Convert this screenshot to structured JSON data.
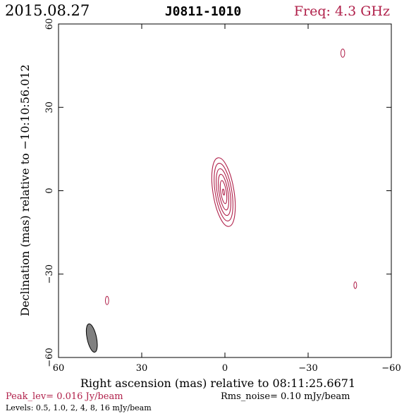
{
  "header": {
    "date": "2015.08.27",
    "source": "J0811-1010",
    "freq": "Freq: 4.3 GHz"
  },
  "chart_data": {
    "type": "contour",
    "xlabel": "Right ascension (mas) relative to 08:11:25.6671",
    "ylabel": "Declination (mas) relative to −10:10:56.012",
    "xlim": [
      60,
      -60
    ],
    "ylim": [
      -60,
      60
    ],
    "xticks": [
      60,
      30,
      0,
      -30,
      -60
    ],
    "yticks": [
      -60,
      -30,
      0,
      30,
      60
    ],
    "xtick_labels": [
      "60",
      "30",
      "0",
      "−30",
      "−60"
    ],
    "ytick_labels": [
      "−60",
      "−30",
      "0",
      "30",
      "60"
    ],
    "contour_levels_mJy": [
      0.5,
      1.0,
      2,
      4,
      8,
      16
    ],
    "main_component": {
      "x": 0.5,
      "y": -0.5,
      "semi_axes_mas": [
        [
          3.8,
          12.5
        ],
        [
          3.0,
          10.5
        ],
        [
          2.3,
          8.5
        ],
        [
          1.6,
          6.5
        ],
        [
          1.0,
          4.2
        ],
        [
          0.3,
          1.1
        ]
      ],
      "pa_deg": -9
    },
    "small_contours": [
      {
        "x": -42.5,
        "y": 49.5,
        "semi_axes_mas": [
          0.7,
          1.5
        ],
        "pa_deg": 0
      },
      {
        "x": 42.5,
        "y": -39.5,
        "semi_axes_mas": [
          0.6,
          1.5
        ],
        "pa_deg": 0
      },
      {
        "x": -47,
        "y": -34,
        "semi_axes_mas": [
          0.5,
          1.2
        ],
        "pa_deg": 0
      }
    ],
    "beam": {
      "x": 48,
      "y": -53,
      "semi_axes_mas": [
        1.7,
        5.2
      ],
      "pa_deg": -12
    },
    "peak_level": "Peak_lev= 0.016 Jy/beam",
    "rms_noise": "Rms_noise= 0.10 mJy/beam",
    "levels_text": "Levels: 0.5, 1.0, 2, 4, 8, 16 mJy/beam"
  },
  "colors": {
    "contour": "#b0204a",
    "axis": "#000000",
    "beam_fill": "#808080",
    "accent_text": "#b0204a"
  }
}
